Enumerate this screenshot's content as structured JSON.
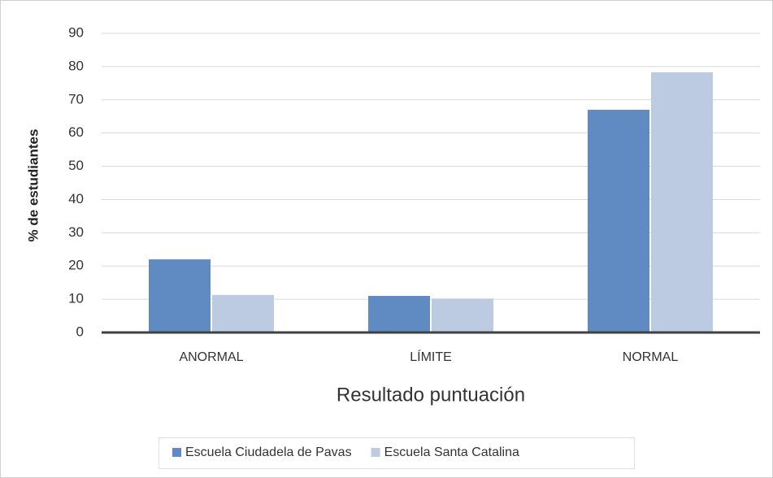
{
  "chart_data": {
    "type": "bar",
    "xlabel": "Resultado puntuación",
    "ylabel": "% de estudiantes",
    "categories": [
      "ANORMAL",
      "LÍMITE",
      "NORMAL"
    ],
    "series": [
      {
        "name": "Escuela Ciudadela de Pavas",
        "color": "#5f8ac2",
        "values": [
          22,
          11,
          67
        ]
      },
      {
        "name": "Escuela Santa Catalina",
        "color": "#bccbe2",
        "values": [
          11.3,
          10.2,
          78.3
        ]
      }
    ],
    "ylim": [
      0,
      90
    ],
    "yticks": [
      0,
      10,
      20,
      30,
      40,
      50,
      60,
      70,
      80,
      90
    ],
    "grid": true,
    "legend": "bottom"
  }
}
